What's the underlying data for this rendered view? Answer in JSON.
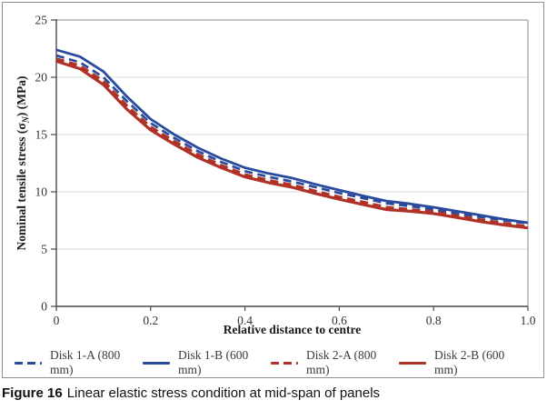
{
  "figure": {
    "caption_prefix": "Figure 16",
    "caption_text": "Linear elastic stress condition at mid-span of panels"
  },
  "chart_data": {
    "type": "line",
    "title": "",
    "xlabel": "Relative distance to centre",
    "ylabel": "Nominal tensile stress (σN) (MPa)",
    "ylabel_parts": {
      "prefix": "Nominal tensile stress (σ",
      "sub": "N",
      "suffix": ") (MPa)"
    },
    "xlim": [
      0,
      1.0
    ],
    "ylim": [
      0,
      25
    ],
    "x_ticks": [
      0,
      0.2,
      0.4,
      0.6,
      0.8,
      1.0
    ],
    "x_tick_labels": [
      "0",
      "0.2",
      "0.4",
      "0.6",
      "0.8",
      "1.0"
    ],
    "y_ticks": [
      0,
      5,
      10,
      15,
      20,
      25
    ],
    "y_tick_labels": [
      "0",
      "5",
      "10",
      "15",
      "20",
      "25"
    ],
    "grid": "horizontal-only",
    "legend_position": "bottom",
    "x": [
      0,
      0.05,
      0.1,
      0.15,
      0.2,
      0.25,
      0.3,
      0.35,
      0.4,
      0.45,
      0.5,
      0.55,
      0.6,
      0.65,
      0.7,
      0.75,
      0.8,
      0.85,
      0.9,
      0.95,
      1.0
    ],
    "series": [
      {
        "name": "Disk 1-A (800 mm)",
        "color": "#2a4a9e",
        "style": "dashed",
        "width": 2.7,
        "values": [
          21.9,
          21.3,
          20.0,
          17.9,
          16.0,
          14.7,
          13.55,
          12.6,
          11.8,
          11.3,
          10.9,
          10.4,
          9.9,
          9.45,
          9.0,
          8.75,
          8.45,
          8.1,
          7.8,
          7.5,
          7.25
        ]
      },
      {
        "name": "Disk 1-B (600 mm)",
        "color": "#2a4a9e",
        "style": "solid",
        "width": 2.8,
        "values": [
          22.4,
          21.8,
          20.5,
          18.3,
          16.35,
          15.0,
          13.85,
          12.9,
          12.1,
          11.6,
          11.2,
          10.65,
          10.15,
          9.65,
          9.2,
          8.95,
          8.65,
          8.3,
          7.95,
          7.6,
          7.3
        ]
      },
      {
        "name": "Disk 2-A (800 mm)",
        "color": "#b03226",
        "style": "dashed",
        "width": 3.3,
        "values": [
          21.6,
          21.0,
          19.65,
          17.5,
          15.65,
          14.4,
          13.25,
          12.3,
          11.5,
          11.0,
          10.6,
          10.05,
          9.55,
          9.1,
          8.65,
          8.45,
          8.25,
          7.9,
          7.55,
          7.25,
          6.95
        ]
      },
      {
        "name": "Disk 2-B (600 mm)",
        "color": "#b03226",
        "style": "solid",
        "width": 3.2,
        "values": [
          21.4,
          20.75,
          19.35,
          17.2,
          15.4,
          14.15,
          13.0,
          12.1,
          11.3,
          10.8,
          10.4,
          9.85,
          9.35,
          8.9,
          8.45,
          8.3,
          8.1,
          7.75,
          7.4,
          7.1,
          6.85
        ]
      }
    ],
    "colors": {
      "grid": "#d9d9d9",
      "axis": "#4a4a4a",
      "frame": "#8c8c8c",
      "tick_text": "#333333"
    }
  }
}
